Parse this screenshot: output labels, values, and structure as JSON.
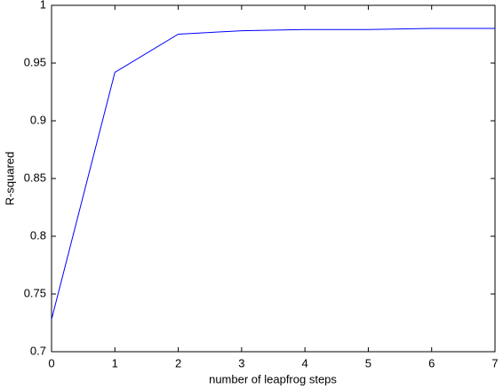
{
  "chart_data": {
    "type": "line",
    "xlabel": "number of leapfrog steps",
    "ylabel": "R-squared",
    "x": [
      0,
      1,
      2,
      3,
      4,
      5,
      6,
      7
    ],
    "series": [
      {
        "color": "#0000ff",
        "values": [
          0.728,
          0.942,
          0.975,
          0.978,
          0.979,
          0.979,
          0.98,
          0.98
        ]
      }
    ],
    "xlim": [
      0,
      7
    ],
    "xticks": [
      0,
      1,
      2,
      3,
      4,
      5,
      6,
      7
    ],
    "ylim": [
      0.7,
      1
    ],
    "yticks": [
      0.7,
      0.75,
      0.8,
      0.85,
      0.9,
      0.95,
      1
    ],
    "grid": false
  }
}
